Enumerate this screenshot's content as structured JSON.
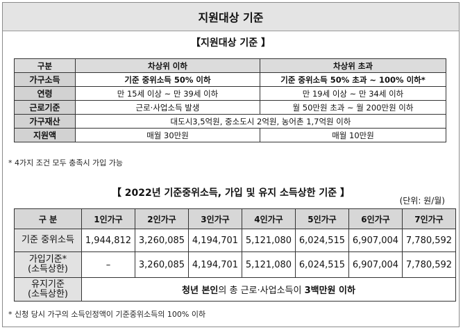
{
  "header": {
    "title": "지원대상 기준"
  },
  "eligibility": {
    "title": "【지원대상 기준 】",
    "columns": [
      "구분",
      "차상위 이하",
      "차상위 초과"
    ],
    "rows": [
      {
        "label": "가구소득",
        "lower": "기준 중위소득 50% 이하",
        "upper": "기준 중위소득 50% 초과 ~ 100% 이하*"
      },
      {
        "label": "연령",
        "lower": "만 15세 이상 ~ 만 39세 이하",
        "upper": "만 19세 이상 ~ 만 34세 이하"
      },
      {
        "label": "근로기준",
        "lower": "근로·사업소득 발생",
        "upper": "월 50만원 초과 ~ 월 200만원 이하"
      },
      {
        "label": "가구재산",
        "merged": "대도시3,5억원, 중소도시 2억원, 농어촌 1,7억원 이하"
      },
      {
        "label": "지원액",
        "lower": "매월 30만원",
        "upper": "매월 10만원"
      }
    ],
    "note": "* 4가지 조건 모두 충족시 가입 가능"
  },
  "income_limits": {
    "title": "【 2022년 기준중위소득, 가입 및 유지 소득상한 기준 】",
    "unit": "(단위: 원/월)",
    "columns": [
      "구 분",
      "1인가구",
      "2인가구",
      "3인가구",
      "4인가구",
      "5인가구",
      "6인가구",
      "7인가구"
    ],
    "rows": [
      {
        "label": "기준 중위소득",
        "values": [
          "1,944,812",
          "3,260,085",
          "4,194,701",
          "5,121,080",
          "6,024,515",
          "6,907,004",
          "7,780,592"
        ]
      },
      {
        "label_line1": "가입기준*",
        "label_line2": "(소득상한)",
        "values": [
          "–",
          "3,260,085",
          "4,194,701",
          "5,121,080",
          "6,024,515",
          "6,907,004",
          "7,780,592"
        ]
      },
      {
        "label_line1": "유지기준",
        "label_line2": "(소득상한)",
        "merged_a": "청년 본인",
        "merged_b": "의 총 근로·사업소득이 ",
        "merged_c": "3백만원 이하"
      }
    ],
    "note": "* 신청 당시 가구의 소득인정액이 기준중위소득의 100% 이하"
  }
}
